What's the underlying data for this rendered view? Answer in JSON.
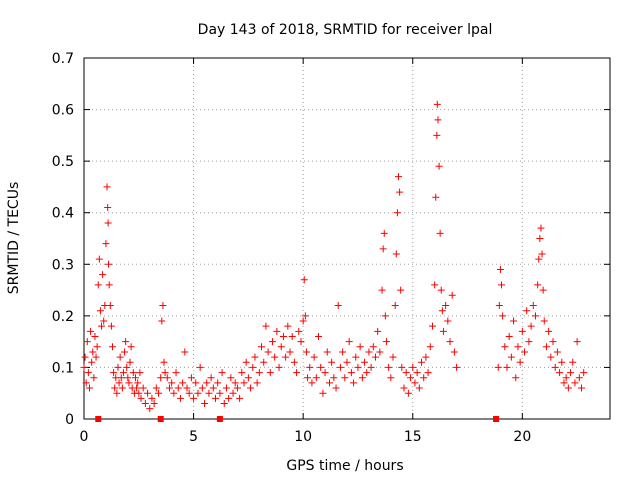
{
  "chart_data": {
    "type": "scatter",
    "title": "Day 143 of 2018, SRMTID for receiver lpal",
    "xlabel": "GPS time / hours",
    "ylabel": "SRMTID / TECUs",
    "xlim": [
      0,
      24
    ],
    "ylim": [
      0,
      0.7
    ],
    "grid": true,
    "x_ticks": [
      0,
      5,
      10,
      15,
      20
    ],
    "x_tick_labels": [
      "0",
      "5",
      "10",
      "15",
      "20"
    ],
    "y_ticks": [
      0,
      0.1,
      0.2,
      0.3,
      0.4,
      0.5,
      0.6,
      0.7
    ],
    "y_tick_labels": [
      "0",
      "0.1",
      "0.2",
      "0.3",
      "0.4",
      "0.5",
      "0.6",
      "0.7"
    ],
    "marker_color": "#ff0000",
    "point_size_note": "plus",
    "data_gap_markers": [
      0.65,
      3.5,
      6.2,
      18.8
    ],
    "series": [
      {
        "name": "SRMTID",
        "points": [
          [
            0.0,
            0.1
          ],
          [
            0.05,
            0.12
          ],
          [
            0.1,
            0.07
          ],
          [
            0.15,
            0.15
          ],
          [
            0.2,
            0.09
          ],
          [
            0.25,
            0.06
          ],
          [
            0.3,
            0.17
          ],
          [
            0.35,
            0.11
          ],
          [
            0.4,
            0.13
          ],
          [
            0.45,
            0.08
          ],
          [
            0.5,
            0.16
          ],
          [
            0.55,
            0.12
          ],
          [
            0.6,
            0.14
          ],
          [
            0.65,
            0.26
          ],
          [
            0.7,
            0.31
          ],
          [
            0.75,
            0.21
          ],
          [
            0.8,
            0.18
          ],
          [
            0.85,
            0.28
          ],
          [
            0.9,
            0.19
          ],
          [
            0.95,
            0.22
          ],
          [
            1.0,
            0.34
          ],
          [
            1.05,
            0.45
          ],
          [
            1.08,
            0.41
          ],
          [
            1.1,
            0.38
          ],
          [
            1.12,
            0.3
          ],
          [
            1.15,
            0.26
          ],
          [
            1.2,
            0.22
          ],
          [
            1.25,
            0.18
          ],
          [
            1.3,
            0.14
          ],
          [
            1.35,
            0.09
          ],
          [
            1.4,
            0.06
          ],
          [
            1.45,
            0.08
          ],
          [
            1.5,
            0.05
          ],
          [
            1.55,
            0.1
          ],
          [
            1.6,
            0.07
          ],
          [
            1.65,
            0.12
          ],
          [
            1.7,
            0.08
          ],
          [
            1.75,
            0.06
          ],
          [
            1.8,
            0.09
          ],
          [
            1.85,
            0.13
          ],
          [
            1.9,
            0.15
          ],
          [
            1.95,
            0.1
          ],
          [
            2.0,
            0.08
          ],
          [
            2.05,
            0.07
          ],
          [
            2.1,
            0.11
          ],
          [
            2.15,
            0.14
          ],
          [
            2.2,
            0.06
          ],
          [
            2.25,
            0.09
          ],
          [
            2.3,
            0.05
          ],
          [
            2.35,
            0.08
          ],
          [
            2.4,
            0.06
          ],
          [
            2.45,
            0.07
          ],
          [
            2.5,
            0.05
          ],
          [
            2.55,
            0.09
          ],
          [
            2.6,
            0.04
          ],
          [
            2.7,
            0.06
          ],
          [
            2.8,
            0.03
          ],
          [
            2.9,
            0.05
          ],
          [
            3.0,
            0.02
          ],
          [
            3.1,
            0.04
          ],
          [
            3.2,
            0.03
          ],
          [
            3.3,
            0.06
          ],
          [
            3.4,
            0.05
          ],
          [
            3.5,
            0.08
          ],
          [
            3.55,
            0.19
          ],
          [
            3.6,
            0.22
          ],
          [
            3.65,
            0.11
          ],
          [
            3.7,
            0.09
          ],
          [
            3.8,
            0.08
          ],
          [
            3.9,
            0.06
          ],
          [
            4.0,
            0.07
          ],
          [
            4.1,
            0.05
          ],
          [
            4.2,
            0.09
          ],
          [
            4.3,
            0.06
          ],
          [
            4.4,
            0.04
          ],
          [
            4.5,
            0.07
          ],
          [
            4.6,
            0.13
          ],
          [
            4.7,
            0.06
          ],
          [
            4.8,
            0.05
          ],
          [
            4.9,
            0.08
          ],
          [
            5.0,
            0.04
          ],
          [
            5.1,
            0.07
          ],
          [
            5.2,
            0.05
          ],
          [
            5.3,
            0.1
          ],
          [
            5.4,
            0.06
          ],
          [
            5.5,
            0.03
          ],
          [
            5.6,
            0.07
          ],
          [
            5.7,
            0.05
          ],
          [
            5.8,
            0.08
          ],
          [
            5.9,
            0.06
          ],
          [
            6.0,
            0.04
          ],
          [
            6.1,
            0.07
          ],
          [
            6.2,
            0.05
          ],
          [
            6.3,
            0.09
          ],
          [
            6.4,
            0.03
          ],
          [
            6.5,
            0.06
          ],
          [
            6.6,
            0.04
          ],
          [
            6.7,
            0.08
          ],
          [
            6.8,
            0.05
          ],
          [
            6.9,
            0.07
          ],
          [
            7.0,
            0.06
          ],
          [
            7.1,
            0.04
          ],
          [
            7.2,
            0.09
          ],
          [
            7.3,
            0.07
          ],
          [
            7.4,
            0.11
          ],
          [
            7.5,
            0.08
          ],
          [
            7.6,
            0.06
          ],
          [
            7.7,
            0.1
          ],
          [
            7.8,
            0.12
          ],
          [
            7.9,
            0.07
          ],
          [
            8.0,
            0.09
          ],
          [
            8.1,
            0.14
          ],
          [
            8.2,
            0.11
          ],
          [
            8.3,
            0.18
          ],
          [
            8.4,
            0.13
          ],
          [
            8.5,
            0.09
          ],
          [
            8.6,
            0.15
          ],
          [
            8.7,
            0.12
          ],
          [
            8.8,
            0.17
          ],
          [
            8.9,
            0.1
          ],
          [
            9.0,
            0.14
          ],
          [
            9.1,
            0.16
          ],
          [
            9.2,
            0.12
          ],
          [
            9.3,
            0.18
          ],
          [
            9.4,
            0.13
          ],
          [
            9.5,
            0.16
          ],
          [
            9.6,
            0.11
          ],
          [
            9.7,
            0.09
          ],
          [
            9.8,
            0.17
          ],
          [
            9.9,
            0.15
          ],
          [
            10.0,
            0.19
          ],
          [
            10.05,
            0.27
          ],
          [
            10.1,
            0.2
          ],
          [
            10.15,
            0.13
          ],
          [
            10.2,
            0.08
          ],
          [
            10.3,
            0.1
          ],
          [
            10.4,
            0.07
          ],
          [
            10.5,
            0.12
          ],
          [
            10.6,
            0.08
          ],
          [
            10.7,
            0.16
          ],
          [
            10.8,
            0.1
          ],
          [
            10.9,
            0.05
          ],
          [
            11.0,
            0.09
          ],
          [
            11.1,
            0.13
          ],
          [
            11.2,
            0.07
          ],
          [
            11.3,
            0.11
          ],
          [
            11.4,
            0.08
          ],
          [
            11.5,
            0.06
          ],
          [
            11.6,
            0.22
          ],
          [
            11.7,
            0.1
          ],
          [
            11.8,
            0.13
          ],
          [
            11.9,
            0.08
          ],
          [
            12.0,
            0.11
          ],
          [
            12.1,
            0.15
          ],
          [
            12.2,
            0.09
          ],
          [
            12.3,
            0.07
          ],
          [
            12.4,
            0.12
          ],
          [
            12.5,
            0.1
          ],
          [
            12.6,
            0.14
          ],
          [
            12.7,
            0.08
          ],
          [
            12.8,
            0.11
          ],
          [
            12.9,
            0.09
          ],
          [
            13.0,
            0.13
          ],
          [
            13.1,
            0.1
          ],
          [
            13.2,
            0.14
          ],
          [
            13.3,
            0.12
          ],
          [
            13.4,
            0.17
          ],
          [
            13.5,
            0.13
          ],
          [
            13.6,
            0.25
          ],
          [
            13.65,
            0.33
          ],
          [
            13.7,
            0.36
          ],
          [
            13.75,
            0.2
          ],
          [
            13.8,
            0.15
          ],
          [
            13.9,
            0.1
          ],
          [
            14.0,
            0.08
          ],
          [
            14.1,
            0.12
          ],
          [
            14.2,
            0.22
          ],
          [
            14.25,
            0.32
          ],
          [
            14.3,
            0.4
          ],
          [
            14.35,
            0.47
          ],
          [
            14.4,
            0.44
          ],
          [
            14.45,
            0.25
          ],
          [
            14.5,
            0.1
          ],
          [
            14.6,
            0.06
          ],
          [
            14.7,
            0.09
          ],
          [
            14.8,
            0.05
          ],
          [
            14.9,
            0.08
          ],
          [
            15.0,
            0.1
          ],
          [
            15.1,
            0.07
          ],
          [
            15.2,
            0.09
          ],
          [
            15.3,
            0.06
          ],
          [
            15.4,
            0.11
          ],
          [
            15.5,
            0.08
          ],
          [
            15.6,
            0.12
          ],
          [
            15.7,
            0.09
          ],
          [
            15.8,
            0.14
          ],
          [
            15.9,
            0.18
          ],
          [
            16.0,
            0.26
          ],
          [
            16.05,
            0.43
          ],
          [
            16.1,
            0.55
          ],
          [
            16.12,
            0.61
          ],
          [
            16.15,
            0.58
          ],
          [
            16.2,
            0.49
          ],
          [
            16.25,
            0.36
          ],
          [
            16.3,
            0.25
          ],
          [
            16.35,
            0.21
          ],
          [
            16.4,
            0.17
          ],
          [
            16.5,
            0.22
          ],
          [
            16.6,
            0.19
          ],
          [
            16.7,
            0.15
          ],
          [
            16.8,
            0.24
          ],
          [
            16.9,
            0.13
          ],
          [
            17.0,
            0.1
          ],
          [
            18.9,
            0.1
          ],
          [
            18.95,
            0.22
          ],
          [
            19.0,
            0.29
          ],
          [
            19.05,
            0.26
          ],
          [
            19.1,
            0.2
          ],
          [
            19.2,
            0.14
          ],
          [
            19.3,
            0.1
          ],
          [
            19.4,
            0.16
          ],
          [
            19.5,
            0.12
          ],
          [
            19.6,
            0.19
          ],
          [
            19.7,
            0.08
          ],
          [
            19.8,
            0.14
          ],
          [
            19.9,
            0.11
          ],
          [
            20.0,
            0.17
          ],
          [
            20.1,
            0.13
          ],
          [
            20.2,
            0.21
          ],
          [
            20.3,
            0.15
          ],
          [
            20.4,
            0.18
          ],
          [
            20.5,
            0.22
          ],
          [
            20.6,
            0.2
          ],
          [
            20.7,
            0.26
          ],
          [
            20.75,
            0.31
          ],
          [
            20.8,
            0.35
          ],
          [
            20.85,
            0.37
          ],
          [
            20.9,
            0.32
          ],
          [
            20.95,
            0.25
          ],
          [
            21.0,
            0.19
          ],
          [
            21.1,
            0.14
          ],
          [
            21.2,
            0.17
          ],
          [
            21.3,
            0.12
          ],
          [
            21.4,
            0.15
          ],
          [
            21.5,
            0.1
          ],
          [
            21.6,
            0.13
          ],
          [
            21.7,
            0.09
          ],
          [
            21.8,
            0.11
          ],
          [
            21.9,
            0.07
          ],
          [
            22.0,
            0.08
          ],
          [
            22.1,
            0.06
          ],
          [
            22.2,
            0.09
          ],
          [
            22.3,
            0.11
          ],
          [
            22.4,
            0.07
          ],
          [
            22.5,
            0.15
          ],
          [
            22.6,
            0.08
          ],
          [
            22.7,
            0.06
          ],
          [
            22.8,
            0.09
          ]
        ]
      }
    ]
  }
}
